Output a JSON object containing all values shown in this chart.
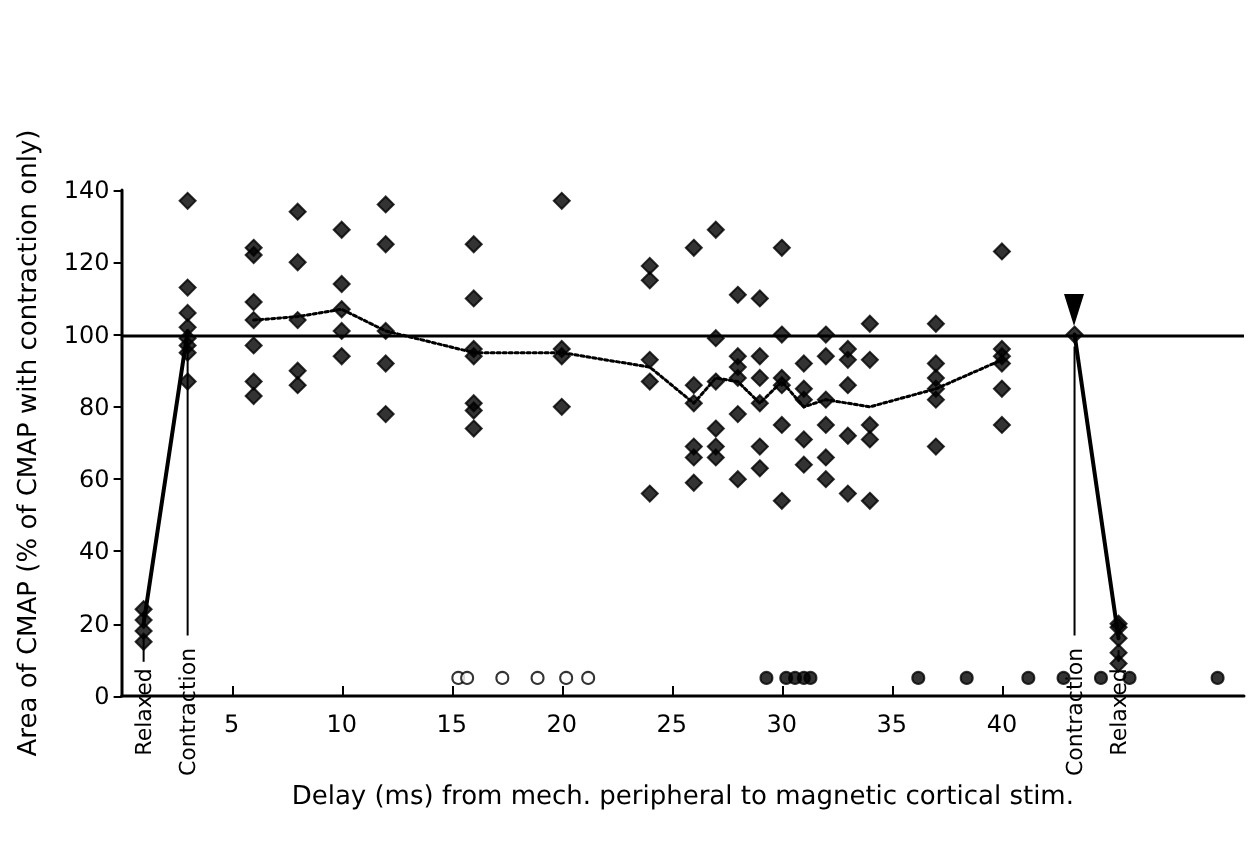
{
  "chart_data": {
    "type": "scatter",
    "xlabel": "Delay (ms) from mech. peripheral to magnetic cortical stim.",
    "ylabel": "Area of CMAP (% of CMAP with contraction only)",
    "xlim": [
      0,
      51
    ],
    "xticks": [
      5,
      10,
      15,
      20,
      25,
      30,
      35,
      40
    ],
    "ylim": [
      0,
      140
    ],
    "yticks": [
      0,
      20,
      40,
      60,
      80,
      100,
      120,
      140
    ],
    "grid": false,
    "annotations": [
      {
        "text": "Relaxed",
        "x": 1,
        "y": 20
      },
      {
        "text": "Contraction",
        "x": 3,
        "y": 101
      },
      {
        "text": "Contraction",
        "x": 43.3,
        "y": 100
      },
      {
        "text": "Relaxed",
        "x": 45.3,
        "y": 16
      }
    ],
    "ref_lines": [
      {
        "axis": "y",
        "value": 100,
        "color": "#000000",
        "line_style": "solid"
      }
    ],
    "series": [
      {
        "marker": "diamond",
        "color": "#000000",
        "x": [
          1,
          1,
          1,
          1,
          3,
          3,
          3,
          3,
          3,
          3,
          3,
          3,
          6,
          6,
          6,
          6,
          6,
          6,
          6,
          8,
          8,
          8,
          8,
          8,
          10,
          10,
          10,
          10,
          10,
          12,
          12,
          12,
          12,
          12,
          16,
          16,
          16,
          16,
          16,
          16,
          16,
          20,
          20,
          20,
          20,
          24,
          24,
          24,
          24,
          24,
          26,
          26,
          26,
          26,
          26,
          26,
          27,
          27,
          27,
          27,
          27,
          27,
          28,
          28,
          28,
          28,
          28,
          28,
          29,
          29,
          29,
          29,
          29,
          29,
          30,
          30,
          30,
          30,
          30,
          30,
          31,
          31,
          31,
          31,
          31,
          32,
          32,
          32,
          32,
          32,
          32,
          33,
          33,
          33,
          33,
          33,
          34,
          34,
          34,
          34,
          34,
          37,
          37,
          37,
          37,
          37,
          37,
          40,
          40,
          40,
          40,
          40,
          40,
          43.3,
          45.3,
          45.3,
          45.3,
          45.3,
          45.3
        ],
        "values": [
          24,
          21,
          18,
          15,
          137,
          113,
          106,
          102,
          99,
          97,
          95,
          87,
          124,
          122,
          109,
          104,
          97,
          87,
          83,
          134,
          120,
          104,
          90,
          86,
          129,
          114,
          107,
          101,
          94,
          136,
          125,
          101,
          92,
          78,
          125,
          110,
          96,
          94,
          81,
          79,
          74,
          137,
          96,
          94,
          80,
          119,
          115,
          93,
          87,
          56,
          124,
          86,
          81,
          69,
          66,
          59,
          129,
          99,
          87,
          74,
          69,
          66,
          111,
          94,
          91,
          88,
          78,
          60,
          110,
          94,
          88,
          81,
          69,
          63,
          124,
          100,
          88,
          86,
          75,
          54,
          92,
          85,
          82,
          71,
          64,
          100,
          94,
          82,
          75,
          66,
          60,
          96,
          93,
          86,
          72,
          56,
          103,
          93,
          75,
          71,
          54,
          103,
          92,
          88,
          85,
          82,
          69,
          123,
          96,
          94,
          92,
          85,
          75,
          100,
          20,
          19,
          16,
          12,
          9
        ]
      },
      {
        "type": "line",
        "marker": "none",
        "line_style": "solid",
        "color": "#000000",
        "x": [
          1,
          3
        ],
        "values": [
          20,
          101
        ]
      },
      {
        "type": "line",
        "marker": "none",
        "line_style": "dotted",
        "color": "#000000",
        "x": [
          6,
          8,
          10,
          12,
          16,
          20,
          24,
          26,
          27,
          28,
          29,
          30,
          31,
          32,
          33,
          34,
          37,
          40
        ],
        "values": [
          104,
          105,
          107,
          101,
          95,
          95,
          91,
          81,
          88,
          87,
          81,
          87,
          80,
          82,
          81,
          80,
          85,
          93
        ]
      },
      {
        "type": "line",
        "marker": "none",
        "line_style": "solid",
        "color": "#000000",
        "x": [
          43.3,
          45.3
        ],
        "values": [
          100,
          16
        ]
      },
      {
        "type": "scatter",
        "marker": "circle",
        "color": "#ffffff",
        "x": [
          15.3,
          15.7,
          17.3,
          18.9,
          20.2,
          21.2
        ],
        "values": [
          5,
          5,
          5,
          5,
          5,
          5
        ]
      },
      {
        "type": "scatter",
        "marker": "circle",
        "color": "#000000",
        "x": [
          29.3,
          30.2,
          30.6,
          31.0,
          31.3,
          36.2,
          38.4,
          41.2,
          42.8,
          44.5,
          45.8,
          49.8
        ],
        "values": [
          5,
          5,
          5,
          5,
          5,
          5,
          5,
          5,
          5,
          5,
          5,
          5
        ]
      }
    ]
  }
}
